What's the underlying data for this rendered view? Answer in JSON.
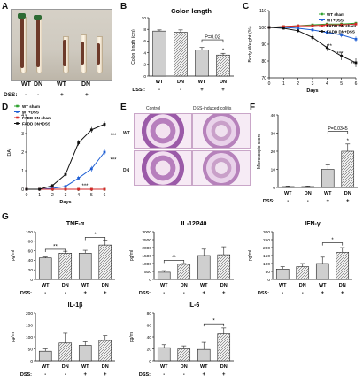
{
  "panel_labels": [
    "A",
    "B",
    "C",
    "D",
    "E",
    "F",
    "G"
  ],
  "panel_a": {
    "groups": [
      "WT",
      "DN",
      "WT",
      "DN"
    ],
    "dss_label": "DSS:",
    "dss_values": [
      "-",
      "-",
      "+",
      "+"
    ]
  },
  "panel_e": {
    "col_headers": [
      "Control",
      "DSS-induced colitis"
    ],
    "row_labels": [
      "WT",
      "DN"
    ]
  },
  "chart_data": [
    {
      "id": "B",
      "type": "bar",
      "title": "Colon length",
      "ylabel": "Colon length (cm)",
      "categories": [
        "WT",
        "DN",
        "WT",
        "DN"
      ],
      "dss": [
        "-",
        "-",
        "+",
        "+"
      ],
      "values": [
        7.7,
        7.5,
        4.5,
        3.6
      ],
      "errors": [
        0.2,
        0.4,
        0.4,
        0.3
      ],
      "ylim": [
        0,
        10
      ],
      "yticks": [
        0,
        2,
        4,
        6,
        8,
        10
      ],
      "annotations": [
        "P=0.02",
        "*"
      ]
    },
    {
      "id": "C",
      "type": "line",
      "ylabel": "Body Weight (%)",
      "xlabel": "Days",
      "x": [
        0,
        1,
        2,
        3,
        4,
        5,
        6
      ],
      "xlim": [
        0,
        6
      ],
      "ylim": [
        70,
        110
      ],
      "yticks": [
        70,
        80,
        90,
        100,
        110
      ],
      "series": [
        {
          "name": "WT sham",
          "color": "#2ca02c",
          "values": [
            100,
            100.5,
            101,
            101.5,
            102,
            102,
            102.5
          ],
          "err": [
            0.5,
            0.6,
            0.6,
            0.7,
            0.7,
            0.8,
            0.8
          ]
        },
        {
          "name": "WT+DSS",
          "color": "#1f5fd4",
          "values": [
            100,
            100,
            99.5,
            98.5,
            97,
            95.5,
            93
          ],
          "err": [
            0.5,
            0.6,
            0.8,
            1,
            1.2,
            1.4,
            1.6
          ]
        },
        {
          "name": "FADD DN sham",
          "color": "#d62728",
          "values": [
            100,
            100.5,
            101,
            101,
            101.5,
            101.5,
            102
          ],
          "err": [
            0.5,
            0.6,
            0.6,
            0.7,
            0.7,
            0.8,
            0.8
          ]
        },
        {
          "name": "FADD DN+DSS",
          "color": "#111111",
          "values": [
            100,
            99.5,
            98,
            94,
            88,
            83,
            79
          ],
          "err": [
            0.6,
            0.8,
            1,
            1.5,
            2,
            2.4,
            2.6
          ]
        }
      ],
      "annotations": [
        "*",
        "**",
        "***",
        "***"
      ]
    },
    {
      "id": "D",
      "type": "line",
      "ylabel": "DAI",
      "xlabel": "Days",
      "x": [
        0,
        1,
        2,
        3,
        4,
        5,
        6
      ],
      "xlim": [
        0,
        6
      ],
      "ylim": [
        0,
        4
      ],
      "yticks": [
        0,
        1,
        2,
        3,
        4
      ],
      "series": [
        {
          "name": "WT sham",
          "color": "#2ca02c",
          "values": [
            0,
            0,
            0,
            0,
            0,
            0,
            0
          ],
          "err": [
            0,
            0,
            0,
            0,
            0,
            0,
            0
          ]
        },
        {
          "name": "WT+DSS",
          "color": "#1f5fd4",
          "values": [
            0,
            0,
            0.05,
            0.15,
            0.6,
            1.1,
            2.0
          ],
          "err": [
            0,
            0,
            0.05,
            0.08,
            0.12,
            0.15,
            0.15
          ]
        },
        {
          "name": "FADD DN sham",
          "color": "#d62728",
          "values": [
            0,
            0,
            0,
            0,
            0,
            0,
            0
          ],
          "err": [
            0,
            0,
            0,
            0,
            0,
            0,
            0
          ]
        },
        {
          "name": "FADD DN+DSS",
          "color": "#111111",
          "values": [
            0,
            0,
            0.2,
            0.8,
            2.5,
            3.2,
            3.5
          ],
          "err": [
            0,
            0,
            0.05,
            0.1,
            0.15,
            0.15,
            0.15
          ]
        }
      ],
      "annotations": [
        "***",
        "***",
        "***"
      ]
    },
    {
      "id": "F",
      "type": "bar",
      "ylabel": "Microscopic score",
      "categories": [
        "WT",
        "DN",
        "WT",
        "DN"
      ],
      "dss": [
        "-",
        "-",
        "+",
        "+"
      ],
      "values": [
        0.5,
        0.5,
        10,
        20
      ],
      "errors": [
        0.3,
        0.3,
        2.5,
        4
      ],
      "ylim": [
        0,
        40
      ],
      "yticks": [
        0,
        10,
        20,
        30,
        40
      ],
      "annotations": [
        "P=0.0345",
        "*"
      ]
    },
    {
      "id": "G1",
      "type": "bar",
      "title": "TNF-α",
      "ylabel": "pg/ml",
      "categories": [
        "WT",
        "DN",
        "WT",
        "DN"
      ],
      "dss": [
        "-",
        "-",
        "+",
        "+"
      ],
      "values": [
        45,
        55,
        55,
        72
      ],
      "errors": [
        2,
        4,
        6,
        10
      ],
      "ylim": [
        0,
        100
      ],
      "yticks": [
        0,
        20,
        40,
        60,
        80,
        100
      ],
      "annotations": [
        "**",
        "*"
      ]
    },
    {
      "id": "G2",
      "type": "bar",
      "title": "IL-12P40",
      "ylabel": "pg/ml",
      "categories": [
        "WT",
        "DN",
        "WT",
        "DN"
      ],
      "dss": [
        "-",
        "-",
        "+",
        "+"
      ],
      "values": [
        450,
        950,
        1500,
        1550
      ],
      "errors": [
        100,
        50,
        400,
        500
      ],
      "ylim": [
        0,
        3000
      ],
      "yticks": [
        0,
        500,
        1000,
        1500,
        2000,
        2500,
        3000
      ],
      "annotations": [
        "**"
      ]
    },
    {
      "id": "G3",
      "type": "bar",
      "title": "IFN-γ",
      "ylabel": "pg/ml",
      "categories": [
        "WT",
        "DN",
        "WT",
        "DN"
      ],
      "dss": [
        "-",
        "-",
        "+",
        "+"
      ],
      "values": [
        65,
        80,
        100,
        170
      ],
      "errors": [
        15,
        20,
        40,
        30
      ],
      "ylim": [
        0,
        300
      ],
      "yticks": [
        0,
        50,
        100,
        150,
        200,
        250,
        300
      ],
      "annotations": [
        "*"
      ]
    },
    {
      "id": "G4",
      "type": "bar",
      "title": "IL-1β",
      "ylabel": "pg/ml",
      "categories": [
        "WT",
        "DN",
        "WT",
        "DN"
      ],
      "dss": [
        "-",
        "-",
        "+",
        "+"
      ],
      "values": [
        40,
        75,
        65,
        85
      ],
      "errors": [
        10,
        40,
        15,
        20
      ],
      "ylim": [
        0,
        200
      ],
      "yticks": [
        0,
        50,
        100,
        150,
        200
      ],
      "annotations": []
    },
    {
      "id": "G5",
      "type": "bar",
      "title": "IL-6",
      "ylabel": "pg/ml",
      "categories": [
        "WT",
        "DN",
        "WT",
        "DN"
      ],
      "dss": [
        "-",
        "-",
        "+",
        "+"
      ],
      "values": [
        22,
        20,
        19,
        45
      ],
      "errors": [
        5,
        5,
        12,
        10
      ],
      "ylim": [
        0,
        80
      ],
      "yticks": [
        0,
        20,
        40,
        60,
        80
      ],
      "annotations": [
        "*"
      ]
    }
  ],
  "dss_label": "DSS:",
  "dss_label_b": "DSS :",
  "colors": {
    "bar_fill": "#cfcfcf",
    "bar_stroke": "#222222",
    "axis": "#111111"
  }
}
